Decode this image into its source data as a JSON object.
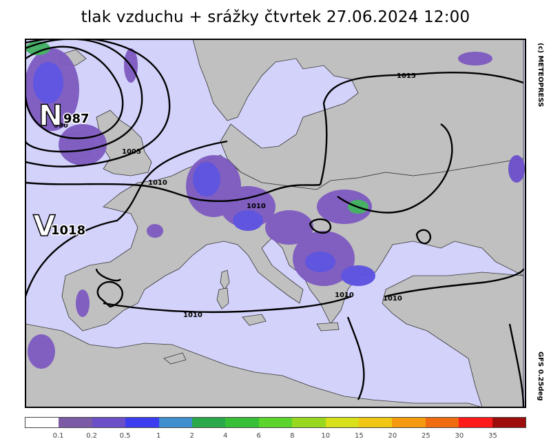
{
  "title": "tlak vzduchu + srážky čtvrtek 27.06.2024 12:00",
  "copyright": "(c) METEOPRESS",
  "model": "GFS 0.25deg",
  "pressure_centers": [
    {
      "symbol": "N",
      "value": "987"
    },
    {
      "symbol": "V",
      "value": "1018"
    }
  ],
  "isobar_labels": [
    "1015",
    "990",
    "1005",
    "1010",
    "1010",
    "1010",
    "1010",
    "1010"
  ],
  "legend": {
    "colors": [
      "#ffffff",
      "#7b5aa6",
      "#6a4fc9",
      "#3c3cf0",
      "#3f8fd0",
      "#2aa84a",
      "#37c037",
      "#5bd42b",
      "#98d81f",
      "#d8e01a",
      "#f0c814",
      "#f59a0e",
      "#f06a10",
      "#ff1a1a",
      "#9e0c0c"
    ],
    "ticks": [
      "0.1",
      "0.2",
      "0.5",
      "1",
      "2",
      "4",
      "6",
      "8",
      "10",
      "15",
      "20",
      "25",
      "30",
      "35"
    ]
  },
  "colors": {
    "land": "#c0c0c0",
    "sea": "#d2d2fa",
    "precip_light": "#7d5ac0",
    "precip_mid": "#5a50e0",
    "precip_heavy": "#40b060"
  }
}
